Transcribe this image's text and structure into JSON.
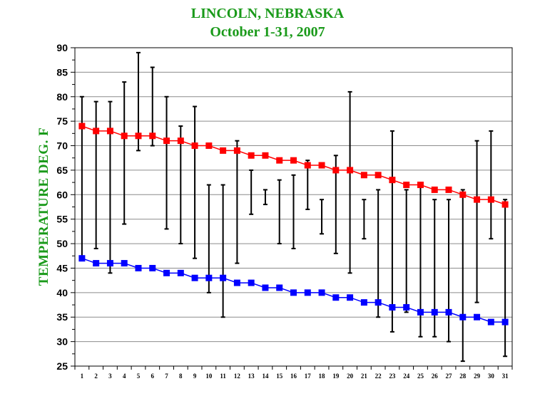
{
  "chart_data": {
    "type": "line",
    "title": "LINCOLN, NEBRASKA",
    "subtitle": "October 1-31,  2007",
    "ylabel": "TEMPERATURE DEG. F",
    "xlabel": "",
    "ylim": [
      25,
      90
    ],
    "yticks": [
      25,
      30,
      35,
      40,
      45,
      50,
      55,
      60,
      65,
      70,
      75,
      80,
      85,
      90
    ],
    "x": [
      1,
      2,
      3,
      4,
      5,
      6,
      7,
      8,
      9,
      10,
      11,
      12,
      13,
      14,
      15,
      16,
      17,
      18,
      19,
      20,
      21,
      22,
      23,
      24,
      25,
      26,
      27,
      28,
      29,
      30,
      31
    ],
    "grid": "horizontal",
    "series": [
      {
        "kind": "line",
        "color": "#ff0000",
        "marker_color": "#ff0000",
        "values": [
          74,
          73,
          73,
          72,
          72,
          72,
          71,
          71,
          70,
          70,
          69,
          69,
          68,
          68,
          67,
          67,
          66,
          66,
          65,
          65,
          64,
          64,
          63,
          62,
          62,
          61,
          61,
          60,
          59,
          59,
          58
        ]
      },
      {
        "kind": "line",
        "color": "#0000ff",
        "marker_color": "#0000ff",
        "values": [
          47,
          46,
          46,
          46,
          45,
          45,
          44,
          44,
          43,
          43,
          43,
          42,
          42,
          41,
          41,
          40,
          40,
          40,
          39,
          39,
          38,
          38,
          37,
          37,
          36,
          36,
          36,
          35,
          35,
          34,
          34
        ]
      },
      {
        "kind": "range",
        "color": "#000000",
        "high": [
          80,
          79,
          79,
          83,
          89,
          86,
          80,
          74,
          78,
          62,
          62,
          71,
          65,
          61,
          63,
          64,
          67,
          59,
          68,
          81,
          59,
          61,
          73,
          61,
          62,
          59,
          59,
          61,
          71,
          73,
          59
        ],
        "low": [
          47,
          49,
          44,
          54,
          69,
          70,
          53,
          50,
          47,
          40,
          35,
          46,
          56,
          58,
          50,
          49,
          57,
          52,
          48,
          44,
          51,
          35,
          32,
          36,
          31,
          31,
          30,
          26,
          38,
          51,
          27
        ]
      }
    ]
  }
}
